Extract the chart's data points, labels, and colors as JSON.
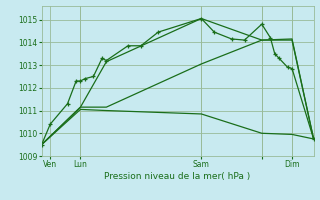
{
  "background_color": "#c8eaf0",
  "grid_color": "#99bb99",
  "line_color": "#1a6e1a",
  "title": "Pression niveau de la mer( hPa )",
  "ylim": [
    1009.0,
    1015.6
  ],
  "yticks": [
    1009,
    1010,
    1011,
    1012,
    1013,
    1014,
    1015
  ],
  "xlim": [
    0,
    63
  ],
  "xtick_positions": [
    2,
    9,
    37,
    51,
    58
  ],
  "xtick_labels": [
    "Ven",
    "Lun",
    "Sam",
    "",
    "Dim"
  ],
  "vline_positions": [
    9,
    37,
    51,
    58
  ],
  "series_main": [
    [
      0,
      1009.5
    ],
    [
      2,
      1010.4
    ],
    [
      6,
      1011.3
    ],
    [
      8,
      1012.3
    ],
    [
      9,
      1012.3
    ],
    [
      10,
      1012.4
    ],
    [
      12,
      1012.5
    ],
    [
      14,
      1013.3
    ],
    [
      15,
      1013.2
    ],
    [
      20,
      1013.85
    ],
    [
      23,
      1013.85
    ],
    [
      27,
      1014.45
    ],
    [
      37,
      1015.05
    ],
    [
      40,
      1014.45
    ],
    [
      44,
      1014.15
    ],
    [
      47,
      1014.1
    ],
    [
      51,
      1014.8
    ],
    [
      53,
      1014.2
    ],
    [
      54,
      1013.5
    ],
    [
      55,
      1013.3
    ],
    [
      57,
      1012.9
    ],
    [
      58,
      1012.85
    ],
    [
      63,
      1009.75
    ]
  ],
  "series_smooth1": [
    [
      0,
      1009.5
    ],
    [
      9,
      1011.15
    ],
    [
      15,
      1013.15
    ],
    [
      37,
      1015.05
    ],
    [
      51,
      1014.1
    ],
    [
      58,
      1014.15
    ],
    [
      63,
      1009.75
    ]
  ],
  "series_smooth2": [
    [
      0,
      1009.5
    ],
    [
      9,
      1011.15
    ],
    [
      15,
      1011.15
    ],
    [
      37,
      1013.05
    ],
    [
      51,
      1014.1
    ],
    [
      58,
      1014.1
    ],
    [
      63,
      1009.75
    ]
  ],
  "series_low": [
    [
      0,
      1009.5
    ],
    [
      9,
      1011.05
    ],
    [
      15,
      1011.0
    ],
    [
      37,
      1010.85
    ],
    [
      51,
      1010.0
    ],
    [
      58,
      1009.95
    ],
    [
      63,
      1009.75
    ]
  ],
  "figsize": [
    3.2,
    2.0
  ],
  "dpi": 100
}
